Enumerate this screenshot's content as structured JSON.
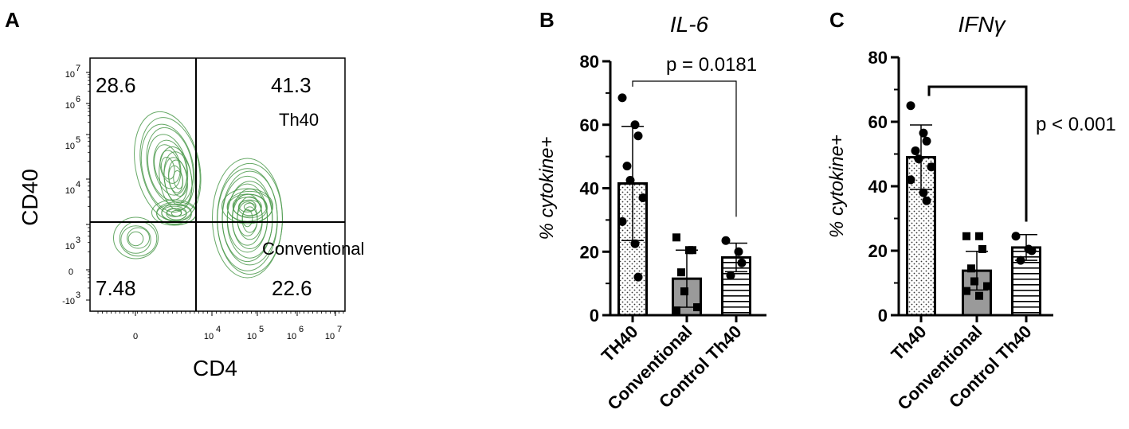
{
  "panel_a": {
    "letter": "A",
    "xlabel": "CD4",
    "ylabel": "CD40",
    "quadrants": {
      "ul": "28.6",
      "ur": "41.3",
      "ll": "7.48",
      "lr": "22.6"
    },
    "gate_labels": {
      "upper": "Th40",
      "lower": "Conventional"
    },
    "x_ticks": [
      {
        "base": "0",
        "exp": ""
      },
      {
        "base": "10",
        "exp": "4"
      },
      {
        "base": "10",
        "exp": "5"
      },
      {
        "base": "10",
        "exp": "6"
      },
      {
        "base": "10",
        "exp": "7"
      }
    ],
    "y_ticks": [
      {
        "base": "10",
        "exp": "7"
      },
      {
        "base": "10",
        "exp": "6"
      },
      {
        "base": "10",
        "exp": "5"
      },
      {
        "base": "10",
        "exp": "4"
      },
      {
        "base": "10",
        "exp": "3"
      },
      {
        "base": "0",
        "exp": ""
      },
      {
        "base": "-10",
        "exp": "3"
      }
    ],
    "contour_color": "#4c9a4c"
  },
  "chart_data": [
    {
      "type": "bar",
      "letter": "B",
      "title": "IL-6",
      "ylabel": "% cytokine+",
      "ylim": [
        0,
        80
      ],
      "yticks": [
        "0",
        "20",
        "40",
        "60",
        "80"
      ],
      "categories": [
        "TH40",
        "Conventional",
        "Control Th40"
      ],
      "values": [
        41.5,
        11.5,
        18.2
      ],
      "sd": [
        18.0,
        9.0,
        4.5
      ],
      "points": [
        [
          68.5,
          60,
          56.5,
          47,
          42.5,
          37,
          29.5,
          22.5,
          12
        ],
        [
          24.5,
          20.5,
          20.5,
          13.5,
          7.5,
          2.5,
          1.5
        ],
        [
          23.5,
          20,
          16.5,
          12.5
        ]
      ],
      "pvalue": "p = 0.0181",
      "fills": [
        "dots",
        "gray",
        "hlines"
      ]
    },
    {
      "type": "bar",
      "letter": "C",
      "title": "IFNγ",
      "ylabel": "% cytokine+",
      "ylim": [
        0,
        80
      ],
      "yticks": [
        "0",
        "20",
        "40",
        "60",
        "80"
      ],
      "categories": [
        "Th40",
        "Conventional",
        "Control Th40"
      ],
      "values": [
        49,
        13.8,
        21
      ],
      "sd": [
        10,
        6,
        4
      ],
      "points": [
        [
          65,
          56.5,
          54,
          51,
          48.5,
          46,
          42,
          38,
          35.5
        ],
        [
          24.5,
          24.5,
          20.5,
          14.5,
          10.5,
          9,
          7.5,
          6
        ],
        [
          24.5,
          20.5,
          20,
          17
        ]
      ],
      "pvalue": "p < 0.001",
      "fills": [
        "dots",
        "gray",
        "hlines"
      ]
    }
  ]
}
